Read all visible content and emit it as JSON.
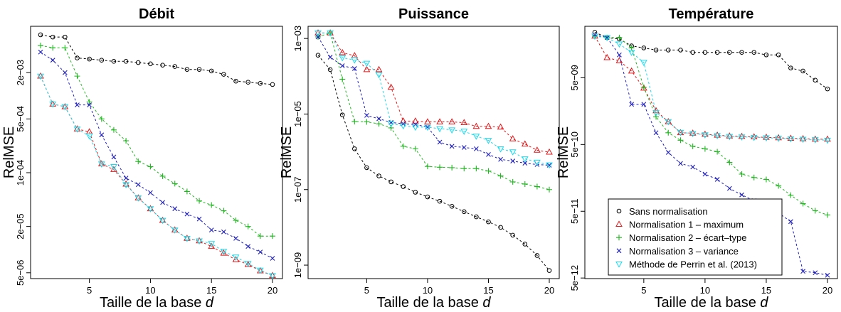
{
  "figure": {
    "x_tick_labels": [
      "5",
      "10",
      "15",
      "20"
    ]
  },
  "legend": {
    "entries": [
      {
        "label": "Sans normalisation",
        "color": "#000000",
        "marker": "circle"
      },
      {
        "label": "Normalisation 1 – maximum",
        "color": "#e0191b",
        "marker": "triangle"
      },
      {
        "label": "Normalisation 2 – écart–type",
        "color": "#22b722",
        "marker": "plus"
      },
      {
        "label": "Normalisation 3 – variance",
        "color": "#1f1fbf",
        "marker": "cross"
      },
      {
        "label": "Méthode de Perrin et al. (2013)",
        "color": "#1fd8ea",
        "marker": "triangle-down"
      }
    ]
  },
  "chart_data": [
    {
      "type": "line",
      "title": "Débit",
      "xlabel": "Taille de la base",
      "xlabel_italic": "d",
      "ylabel": "RelMSE",
      "xlim": [
        1,
        20
      ],
      "ylim": [
        4.2e-06,
        0.008
      ],
      "yscale": "log",
      "y_ticks": [
        {
          "v": 0.002,
          "label": "2e−03"
        },
        {
          "v": 0.0005,
          "label": "5e−04"
        },
        {
          "v": 0.0001,
          "label": "1e−04"
        },
        {
          "v": 2e-05,
          "label": "2e−05"
        },
        {
          "v": 5e-06,
          "label": "5e−06"
        }
      ],
      "x": [
        1,
        2,
        3,
        4,
        5,
        6,
        7,
        8,
        9,
        10,
        11,
        12,
        13,
        14,
        15,
        16,
        17,
        18,
        19,
        20
      ],
      "series": [
        {
          "values": [
            0.0062,
            0.0058,
            0.0058,
            0.0031,
            0.003,
            0.0029,
            0.0028,
            0.0028,
            0.0027,
            0.0026,
            0.0025,
            0.0024,
            0.0022,
            0.0022,
            0.0021,
            0.0019,
            0.00155,
            0.0015,
            0.00145,
            0.0014
          ]
        },
        {
          "values": [
            0.0018,
            0.00078,
            0.00072,
            0.00037,
            0.00034,
            0.00013,
            0.00011,
            7.1e-05,
            4.7e-05,
            3.4e-05,
            2.4e-05,
            1.8e-05,
            1.4e-05,
            1.3e-05,
            1.1e-05,
            9e-06,
            7.4e-06,
            6.4e-06,
            5.3e-06,
            4.6e-06
          ]
        },
        {
          "values": [
            0.0045,
            0.0042,
            0.0042,
            0.0018,
            0.00083,
            0.0005,
            0.00036,
            0.00026,
            0.00014,
            0.00012,
            9e-05,
            7.2e-05,
            5.7e-05,
            4.3e-05,
            3.8e-05,
            3.2e-05,
            2.4e-05,
            2e-05,
            1.5e-05,
            1.5e-05
          ]
        },
        {
          "values": [
            0.0037,
            0.0029,
            0.002,
            0.00076,
            0.00076,
            0.00031,
            0.00016,
            8.5e-05,
            7e-05,
            5.5e-05,
            4.1e-05,
            3.4e-05,
            2.9e-05,
            2.5e-05,
            1.8e-05,
            1.7e-05,
            1.4e-05,
            1.1e-05,
            9.3e-06,
            7.7e-06
          ]
        },
        {
          "values": [
            0.0018,
            0.00078,
            0.00072,
            0.00037,
            0.0003,
            0.00013,
            0.00012,
            7e-05,
            4.7e-05,
            3.4e-05,
            2.4e-05,
            1.8e-05,
            1.4e-05,
            1.3e-05,
            1.2e-05,
            9.5e-06,
            8e-06,
            6.6e-06,
            5.4e-06,
            4.6e-06
          ]
        }
      ]
    },
    {
      "type": "line",
      "title": "Puissance",
      "xlabel": "Taille de la base",
      "xlabel_italic": "d",
      "ylabel": "RelMSE",
      "xlim": [
        1,
        20
      ],
      "ylim": [
        4.4e-10,
        0.0021
      ],
      "yscale": "log",
      "y_ticks": [
        {
          "v": 0.001,
          "label": "1e−03"
        },
        {
          "v": 1e-05,
          "label": "1e−05"
        },
        {
          "v": 1e-07,
          "label": "1e−07"
        },
        {
          "v": 1e-09,
          "label": "1e−09"
        }
      ],
      "x": [
        1,
        2,
        3,
        4,
        5,
        6,
        7,
        8,
        9,
        10,
        11,
        12,
        13,
        14,
        15,
        16,
        17,
        18,
        19,
        20
      ],
      "series": [
        {
          "values": [
            0.00036,
            0.00015,
            9.5e-06,
            1.2e-06,
            3.8e-07,
            2.3e-07,
            1.6e-07,
            1.2e-07,
            8.5e-08,
            6.4e-08,
            4.9e-08,
            3.6e-08,
            2.6e-08,
            1.9e-08,
            1.4e-08,
            1e-08,
            6.2e-09,
            3.6e-09,
            1.8e-09,
            7.2e-10
          ]
        },
        {
          "values": [
            0.0014,
            0.0014,
            0.00042,
            0.00035,
            0.00015,
            0.00015,
            5.1e-05,
            6.5e-06,
            6.5e-06,
            6.2e-06,
            6.2e-06,
            6.2e-06,
            5.9e-06,
            4.7e-06,
            4.7e-06,
            4.5e-06,
            2.2e-06,
            1.6e-06,
            1.1e-06,
            9.8e-07
          ]
        },
        {
          "values": [
            0.0011,
            0.0014,
            8.3e-05,
            6.3e-06,
            6.2e-06,
            5.5e-06,
            4.3e-06,
            1.4e-06,
            1.2e-06,
            4.1e-07,
            3.9e-07,
            3.8e-07,
            3.6e-07,
            3.6e-07,
            3.1e-07,
            2.3e-07,
            1.6e-07,
            1.4e-07,
            1.2e-07,
            1e-07
          ]
        },
        {
          "values": [
            0.0011,
            0.00032,
            0.00019,
            0.00016,
            9.2e-06,
            7.5e-06,
            6e-06,
            5.5e-06,
            5.3e-06,
            4.5e-06,
            1.8e-06,
            1.4e-06,
            1.3e-06,
            1.2e-06,
            8.5e-07,
            6.3e-07,
            5.7e-07,
            5e-07,
            4.6e-07,
            4.4e-07
          ]
        },
        {
          "values": [
            0.0014,
            0.0014,
            0.00031,
            0.00027,
            0.00022,
            0.00011,
            5.5e-06,
            4.9e-06,
            4.5e-06,
            4.5e-06,
            4.1e-06,
            3.8e-06,
            3.5e-06,
            2.6e-06,
            2e-06,
            1.2e-06,
            1e-06,
            6.5e-07,
            5.3e-07,
            4.5e-07
          ]
        }
      ]
    },
    {
      "type": "line",
      "title": "Température",
      "xlabel": "Taille de la base",
      "xlabel_italic": "d",
      "ylabel": "RelMSE",
      "xlim": [
        1,
        20
      ],
      "ylim": [
        4.9e-12,
        2.95e-08
      ],
      "yscale": "log",
      "y_ticks": [
        {
          "v": 5e-09,
          "label": "5e−09"
        },
        {
          "v": 5e-10,
          "label": "5e−10"
        },
        {
          "v": 5e-11,
          "label": "5e−11"
        },
        {
          "v": 5e-12,
          "label": "5e−12"
        }
      ],
      "x": [
        1,
        2,
        3,
        4,
        5,
        6,
        7,
        8,
        9,
        10,
        11,
        12,
        13,
        14,
        15,
        16,
        17,
        18,
        19,
        20
      ],
      "series": [
        {
          "values": [
            2.4e-08,
            2e-08,
            1.9e-08,
            1.5e-08,
            1.4e-08,
            1.3e-08,
            1.3e-08,
            1.3e-08,
            1.2e-08,
            1.2e-08,
            1.2e-08,
            1.2e-08,
            1.2e-08,
            1.2e-08,
            1.1e-08,
            1.1e-08,
            7e-09,
            6.3e-09,
            4.6e-09,
            3.4e-09
          ]
        },
        {
          "values": [
            2.1e-08,
            1e-08,
            9e-09,
            6.3e-09,
            3.5e-09,
            1.6e-09,
            1.1e-09,
            7.5e-10,
            7.4e-10,
            7.1e-10,
            6.9e-10,
            6.7e-10,
            6.6e-10,
            6.5e-10,
            6.4e-10,
            6.3e-10,
            6.2e-10,
            6.1e-10,
            6e-10,
            6e-10
          ]
        },
        {
          "values": [
            2.1e-08,
            2e-08,
            2e-08,
            1.4e-08,
            3.6e-09,
            1.3e-09,
            7.5e-10,
            5.8e-10,
            4.7e-10,
            4.3e-10,
            3.9e-10,
            2.7e-10,
            1.8e-10,
            1.6e-10,
            1.5e-10,
            1.2e-10,
            8.7e-11,
            6.5e-11,
            5.1e-11,
            4.4e-11
          ]
        },
        {
          "values": [
            2.2e-08,
            2e-08,
            1.1e-08,
            2e-09,
            2e-09,
            7.5e-10,
            3.8e-10,
            2.6e-10,
            2.3e-10,
            1.8e-10,
            1.5e-10,
            1.1e-10,
            8.8e-11,
            7.2e-11,
            6.2e-11,
            4.7e-11,
            3.5e-11,
            6.3e-12,
            6e-12,
            5.5e-12
          ]
        },
        {
          "values": [
            2.1e-08,
            2e-08,
            1.6e-08,
            1.2e-08,
            8.5e-09,
            1.5e-09,
            1.1e-09,
            7.6e-10,
            7.3e-10,
            7e-10,
            6.8e-10,
            6.6e-10,
            6.5e-10,
            6.4e-10,
            6.3e-10,
            6.2e-10,
            6.1e-10,
            6e-10,
            5.9e-10,
            5.8e-10
          ]
        }
      ]
    }
  ]
}
